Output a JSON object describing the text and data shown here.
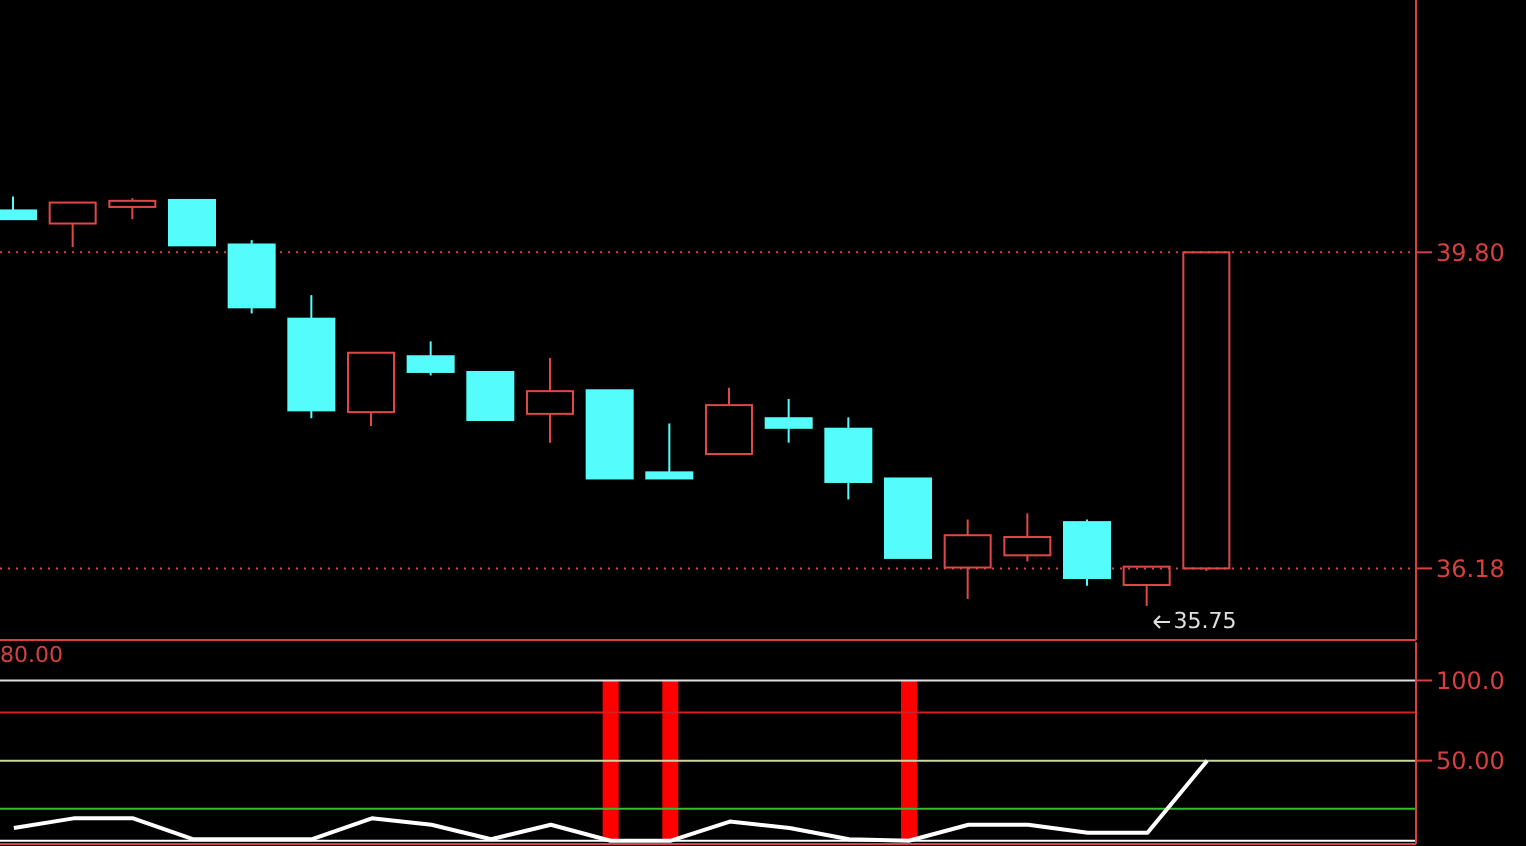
{
  "chart_data": [
    {
      "type": "candlestick",
      "categories": [
        null,
        null,
        null,
        null,
        null,
        null,
        null,
        null,
        null,
        null,
        null,
        null,
        null,
        null,
        null,
        null,
        null,
        null,
        null,
        null,
        null,
        null,
        null,
        null
      ],
      "ohlc": [
        [
          40.28,
          40.44,
          40.18,
          40.18
        ],
        [
          40.13,
          40.37,
          39.86,
          40.37
        ],
        [
          40.32,
          40.42,
          40.18,
          40.39
        ],
        [
          40.4,
          40.4,
          39.88,
          39.88
        ],
        [
          39.89,
          39.94,
          39.1,
          39.17
        ],
        [
          39.04,
          39.31,
          37.9,
          37.99
        ],
        [
          37.97,
          38.65,
          37.81,
          38.65
        ],
        [
          38.61,
          38.78,
          38.39,
          38.43
        ],
        [
          38.43,
          38.44,
          37.88,
          37.88
        ],
        [
          37.95,
          38.59,
          37.62,
          38.21
        ],
        [
          38.22,
          38.22,
          37.21,
          37.21
        ],
        [
          37.28,
          37.84,
          37.21,
          37.21
        ],
        [
          37.49,
          38.25,
          37.49,
          38.05
        ],
        [
          37.9,
          38.12,
          37.62,
          37.79
        ],
        [
          37.78,
          37.91,
          36.97,
          37.17
        ],
        [
          37.21,
          37.21,
          36.3,
          36.3
        ],
        [
          36.19,
          36.74,
          35.83,
          36.56
        ],
        [
          36.33,
          36.81,
          36.26,
          36.54
        ],
        [
          36.71,
          36.74,
          35.98,
          36.07
        ],
        [
          35.99,
          36.2,
          35.75,
          36.2
        ],
        [
          36.18,
          39.8,
          36.15,
          39.8
        ],
        null,
        null,
        null
      ],
      "colors": [
        "#54fcfc",
        "#e04848",
        "#e04848",
        "#54fcfc",
        "#54fcfc",
        "#54fcfc",
        "#e04848",
        "#54fcfc",
        "#54fcfc",
        "#e04848",
        "#54fcfc",
        "#54fcfc",
        "#e04848",
        "#54fcfc",
        "#54fcfc",
        "#54fcfc",
        "#e04848",
        "#e04848",
        "#54fcfc",
        "#e04848",
        "#e04848",
        null,
        null,
        null
      ],
      "ylim": [
        35.36,
        42.69
      ],
      "yticks": [
        36.18,
        {
          "value": 39.8,
          "label": "39.80"
        }
      ],
      "grid": "y",
      "legend": false,
      "tick_labels": "y",
      "annotations": [
        "35.75"
      ]
    },
    {
      "type": "line",
      "categories": [
        null,
        null,
        null,
        null,
        null,
        null,
        null,
        null,
        null,
        null,
        null,
        null,
        null,
        null,
        null,
        null,
        null,
        null,
        null,
        null,
        null,
        null,
        null,
        null
      ],
      "series": [
        {
          "type": "bar",
          "color": "#ff0000",
          "values": [
            null,
            null,
            null,
            null,
            null,
            null,
            null,
            null,
            null,
            null,
            100,
            100,
            null,
            null,
            null,
            100,
            null,
            null,
            null,
            null,
            null,
            null,
            null,
            null
          ]
        },
        {
          "color": "#ffffff",
          "values": [
            8,
            14,
            14,
            1,
            1,
            1,
            14,
            10,
            1,
            10,
            0,
            0,
            12,
            8,
            1,
            0,
            10,
            10,
            5,
            5,
            50,
            null,
            null,
            null
          ]
        }
      ],
      "ylim": [
        -2,
        124
      ],
      "yticks": [
        {
          "value": 100,
          "label": "100.0"
        },
        {
          "value": 50,
          "label": "50.00"
        }
      ],
      "legend": false,
      "tick_labels": "y",
      "ref_lines": [
        {
          "axis": "y",
          "value": 100,
          "color": "#e0e0e0"
        },
        {
          "axis": "y",
          "value": 80,
          "color": "#d02020"
        },
        {
          "axis": "y",
          "value": 50,
          "color": "#c8d8a0"
        },
        {
          "axis": "y",
          "value": 20,
          "color": "#30c030"
        },
        {
          "axis": "y",
          "value": 0,
          "color": "#ffffff"
        }
      ],
      "annotations": [
        "80.00"
      ]
    }
  ]
}
